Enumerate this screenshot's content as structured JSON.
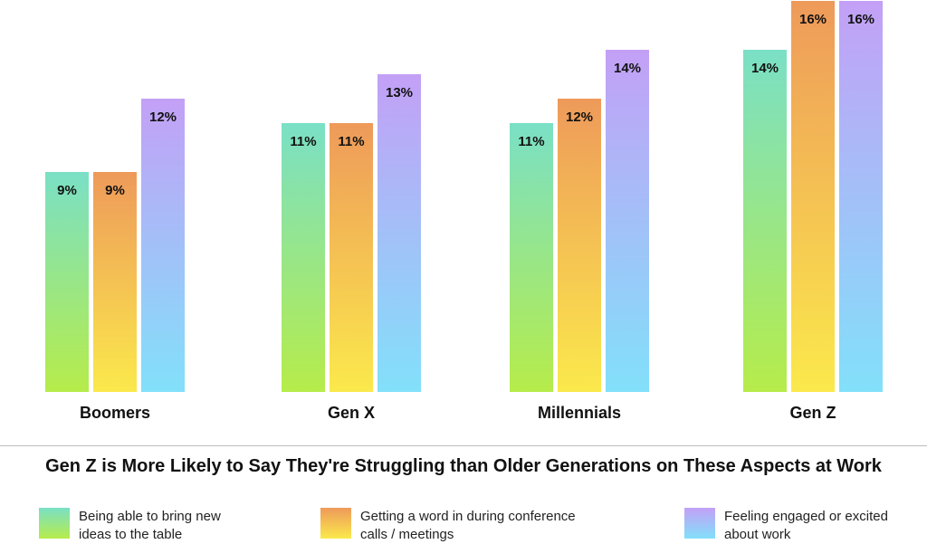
{
  "chart_data": {
    "type": "bar",
    "title": "Gen Z is More Likely to Say They're Struggling than Older Generations on These Aspects at  Work",
    "categories": [
      "Boomers",
      "Gen X",
      "Millennials",
      "Gen Z"
    ],
    "value_suffix": "%",
    "series": [
      {
        "name": "Being able to bring new ideas to the table",
        "name_lines": [
          "Being able to bring new",
          "ideas to the table"
        ],
        "values": [
          9,
          11,
          11,
          14
        ],
        "gradient": [
          "#7ae0c6",
          "#b6ec4a"
        ]
      },
      {
        "name": "Getting a word in during conference calls / meetings",
        "name_lines": [
          "Getting a word in during conference",
          "calls / meetings"
        ],
        "values": [
          9,
          11,
          12,
          16
        ],
        "gradient": [
          "#ee9a5a",
          "#fbe94c"
        ]
      },
      {
        "name": "Feeling engaged or excited about work",
        "name_lines": [
          "Feeling engaged or excited",
          "about work"
        ],
        "values": [
          12,
          13,
          14,
          16
        ],
        "gradient": [
          "#c3a0f6",
          "#82e0fa"
        ]
      }
    ],
    "ylim": [
      0,
      16
    ],
    "grid": false,
    "legend_position": "bottom"
  }
}
